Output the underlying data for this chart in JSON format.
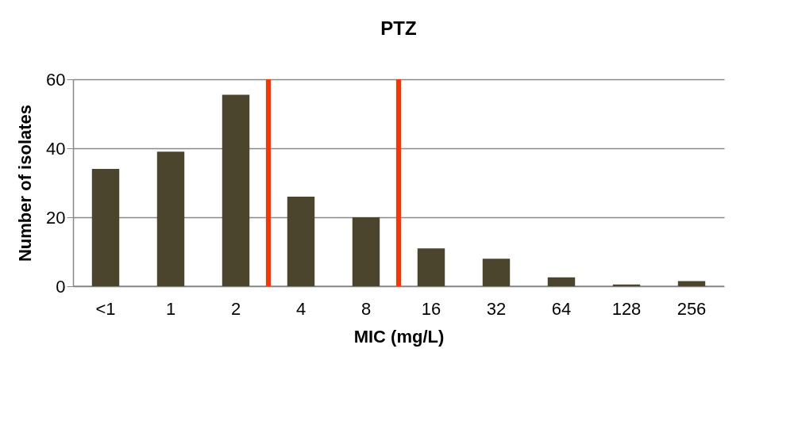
{
  "chart_data": {
    "type": "bar",
    "title": "PTZ",
    "xlabel": "MIC (mg/L)",
    "ylabel": "Number of isolates",
    "categories": [
      "<1",
      "1",
      "2",
      "4",
      "8",
      "16",
      "32",
      "64",
      "128",
      "256"
    ],
    "values": [
      34,
      39,
      55.5,
      26,
      20,
      11,
      8,
      2.6,
      0.5,
      1.5
    ],
    "color": "#4b452d",
    "ylim": [
      0,
      60
    ],
    "yticks": [
      0,
      20,
      40,
      60
    ],
    "grid": "y"
  }
}
